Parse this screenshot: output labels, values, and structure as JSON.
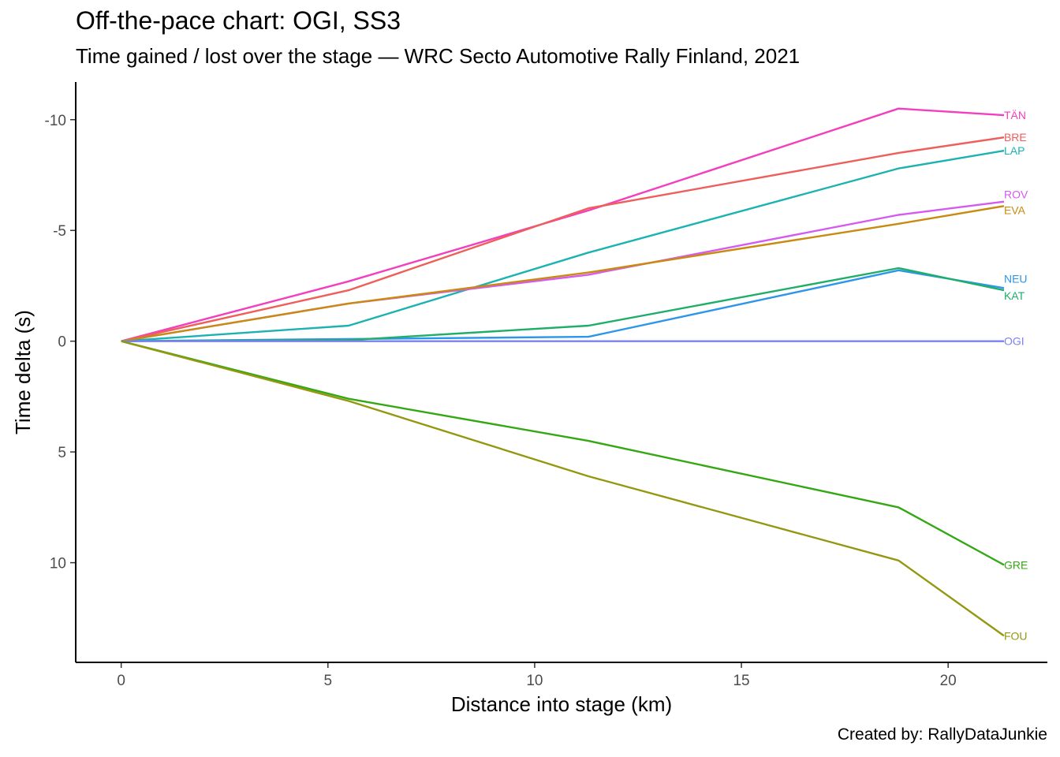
{
  "chart_data": {
    "type": "line",
    "title": "Off-the-pace chart: OGI, SS3",
    "subtitle": "Time gained / lost over the stage — WRC Secto Automotive Rally Finland, 2021",
    "caption": "Created by: RallyDataJunkie",
    "xlabel": "Distance into stage (km)",
    "ylabel": "Time delta (s)",
    "xlim": [
      -1.1,
      22.4
    ],
    "ylim": [
      -11.7,
      14.5
    ],
    "y_reversed": true,
    "x_ticks": [
      0,
      5,
      10,
      15,
      20
    ],
    "x_tick_labels": [
      "0",
      "5",
      "10",
      "15",
      "20"
    ],
    "y_ticks": [
      -10,
      -5,
      0,
      5,
      10
    ],
    "y_tick_labels": [
      "-10",
      "-5",
      "0",
      "5",
      "10"
    ],
    "grid": false,
    "legend": "none",
    "x": [
      0,
      5.5,
      11.3,
      18.8,
      21.35
    ],
    "series": [
      {
        "name": "TÄN",
        "color": "#f33fbd",
        "values": [
          0,
          -2.7,
          -5.9,
          -10.5,
          -10.2
        ]
      },
      {
        "name": "BRE",
        "color": "#ee5f5b",
        "values": [
          0,
          -2.3,
          -6.0,
          -8.5,
          -9.2
        ]
      },
      {
        "name": "LAP",
        "color": "#1db2b2",
        "values": [
          0,
          -0.7,
          -4.0,
          -7.8,
          -8.6
        ]
      },
      {
        "name": "ROV",
        "color": "#d55af0",
        "values": [
          0,
          -1.7,
          -3.0,
          -5.7,
          -6.3
        ]
      },
      {
        "name": "EVA",
        "color": "#c98a10",
        "values": [
          0,
          -1.7,
          -3.1,
          -5.3,
          -6.1
        ]
      },
      {
        "name": "NEU",
        "color": "#2e96ea",
        "values": [
          0,
          -0.1,
          -0.2,
          -3.2,
          -2.4
        ]
      },
      {
        "name": "KAT",
        "color": "#1fae6a",
        "values": [
          0,
          -0.05,
          -0.7,
          -3.3,
          -2.3
        ]
      },
      {
        "name": "OGI",
        "color": "#7c81f0",
        "values": [
          0,
          0,
          0,
          0,
          0
        ]
      },
      {
        "name": "GRE",
        "color": "#33a812",
        "values": [
          0,
          2.6,
          4.5,
          7.5,
          10.1
        ]
      },
      {
        "name": "FOU",
        "color": "#949810",
        "values": [
          0,
          2.7,
          6.1,
          9.9,
          13.3
        ]
      }
    ]
  }
}
